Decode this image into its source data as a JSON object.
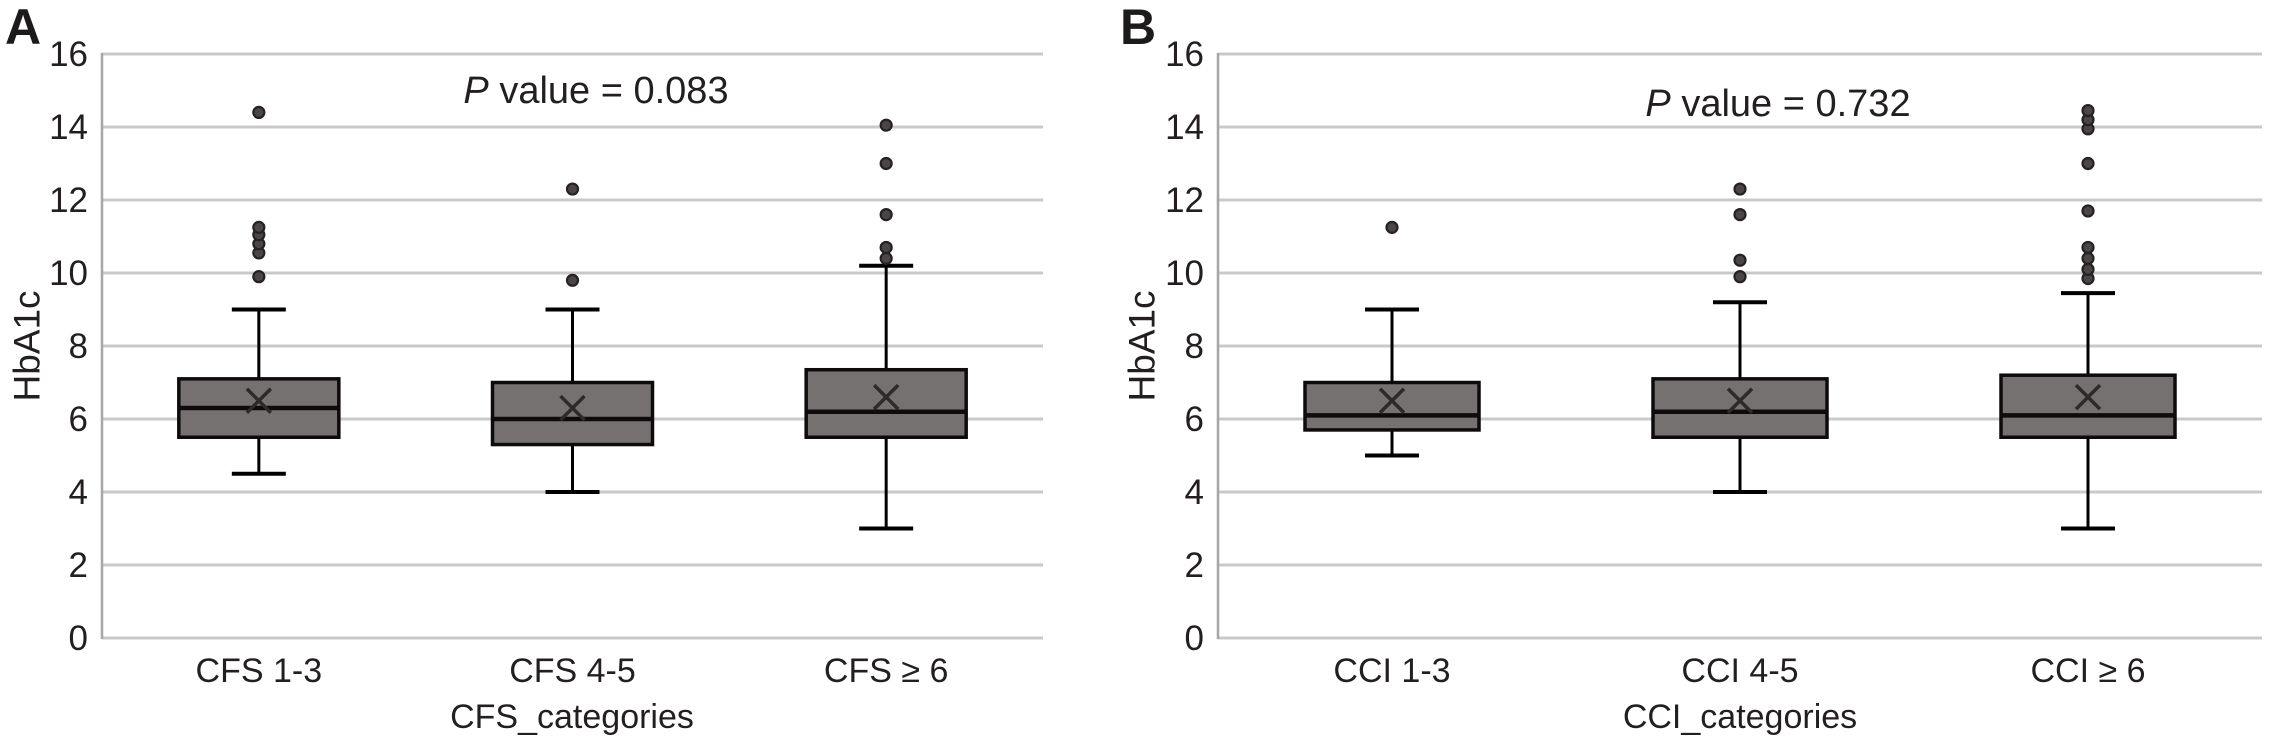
{
  "style": {
    "background": "#ffffff",
    "text_color": "#231f20",
    "gridline_color": "#c9c9c9",
    "axis_line_color": "#a6a6a6",
    "box_fill": "#767171",
    "box_stroke": "#0d0b0c",
    "whisker_color": "#000000",
    "mean_color": "#2e2a2b",
    "outlier_fill": "#4a4646",
    "outlier_stroke": "#262223"
  },
  "chart_data": [
    {
      "type": "box",
      "panel_label": "A",
      "p_stat": {
        "symbol": "P",
        "rest": " value = 0.083"
      },
      "xlabel": "CFS_categories",
      "ylabel": "HbA1c",
      "ylim": [
        0,
        16
      ],
      "yticks": [
        0,
        2,
        4,
        6,
        8,
        10,
        12,
        14,
        16
      ],
      "grid": true,
      "legend": "none",
      "categories": [
        "CFS 1-3",
        "CFS 4-5",
        "CFS ≥ 6"
      ],
      "series": [
        {
          "category": "CFS 1-3",
          "whisker_low": 4.5,
          "q1": 5.5,
          "median": 6.3,
          "q3": 7.1,
          "whisker_high": 9.0,
          "mean": 6.5,
          "outliers": [
            9.9,
            10.55,
            10.8,
            11.05,
            11.25,
            14.4
          ]
        },
        {
          "category": "CFS 4-5",
          "whisker_low": 4.0,
          "q1": 5.3,
          "median": 6.0,
          "q3": 7.0,
          "whisker_high": 9.0,
          "mean": 6.3,
          "outliers": [
            9.8,
            12.3
          ]
        },
        {
          "category": "CFS ≥ 6",
          "whisker_low": 3.0,
          "q1": 5.5,
          "median": 6.2,
          "q3": 7.35,
          "whisker_high": 10.2,
          "mean": 6.6,
          "outliers": [
            10.4,
            10.7,
            11.6,
            13.0,
            14.05
          ]
        }
      ]
    },
    {
      "type": "box",
      "panel_label": "B",
      "p_stat": {
        "symbol": "P",
        "rest": " value = 0.732"
      },
      "xlabel": "CCI_categories",
      "ylabel": "HbA1c",
      "ylim": [
        0,
        16
      ],
      "yticks": [
        0,
        2,
        4,
        6,
        8,
        10,
        12,
        14,
        16
      ],
      "grid": true,
      "legend": "none",
      "categories": [
        "CCI 1-3",
        "CCI 4-5",
        "CCI ≥ 6"
      ],
      "series": [
        {
          "category": "CCI 1-3",
          "whisker_low": 5.0,
          "q1": 5.7,
          "median": 6.1,
          "q3": 7.0,
          "whisker_high": 9.0,
          "mean": 6.5,
          "outliers": [
            11.25
          ]
        },
        {
          "category": "CCI 4-5",
          "whisker_low": 4.0,
          "q1": 5.5,
          "median": 6.2,
          "q3": 7.1,
          "whisker_high": 9.2,
          "mean": 6.5,
          "outliers": [
            9.9,
            10.35,
            11.6,
            12.3
          ]
        },
        {
          "category": "CCI ≥ 6",
          "whisker_low": 3.0,
          "q1": 5.5,
          "median": 6.1,
          "q3": 7.2,
          "whisker_high": 9.45,
          "mean": 6.6,
          "outliers": [
            9.85,
            10.1,
            10.4,
            10.7,
            11.7,
            13.0,
            13.95,
            14.2,
            14.45
          ]
        }
      ]
    }
  ]
}
